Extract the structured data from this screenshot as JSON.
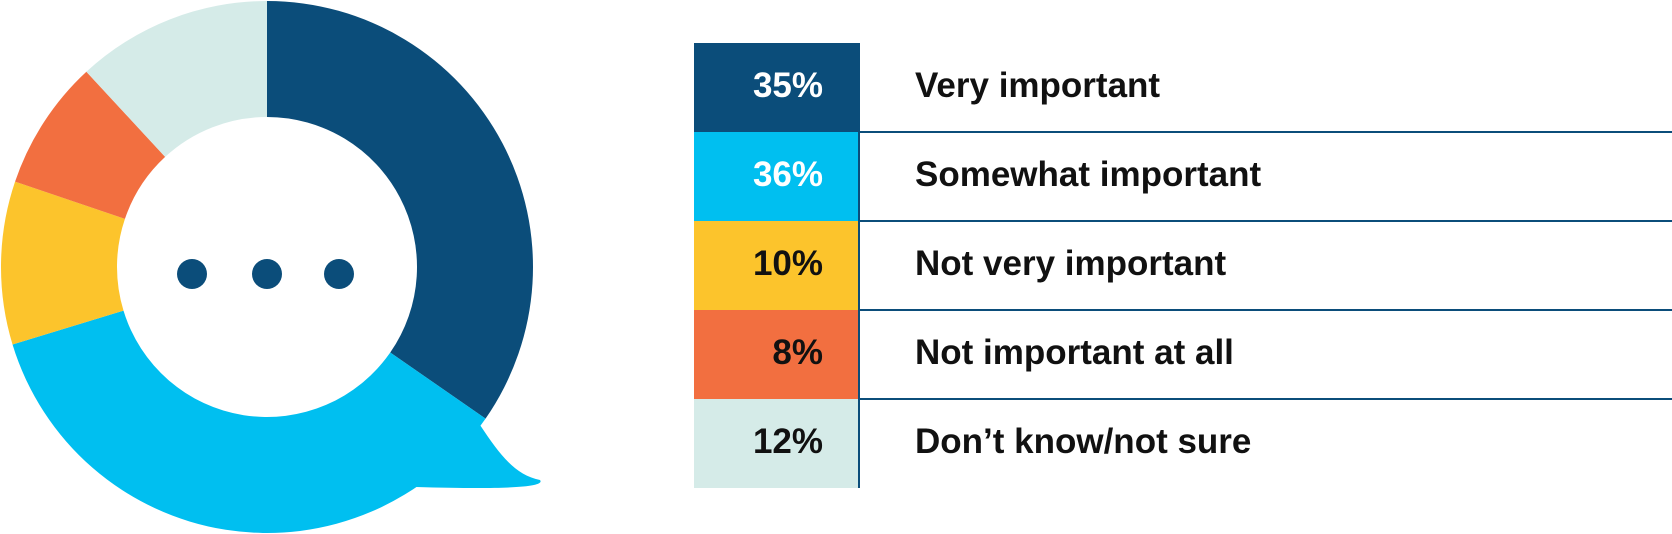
{
  "chart_data": {
    "type": "pie",
    "categories": [
      "Very important",
      "Somewhat important",
      "Not very important",
      "Not important at all",
      "Don’t know/not sure"
    ],
    "values": [
      35,
      36,
      10,
      8,
      12
    ],
    "value_labels": [
      "35%",
      "36%",
      "10%",
      "8%",
      "12%"
    ],
    "colors": [
      "#0b4d7a",
      "#00bff0",
      "#fcc42c",
      "#f26f40",
      "#d5ebe8"
    ]
  }
}
